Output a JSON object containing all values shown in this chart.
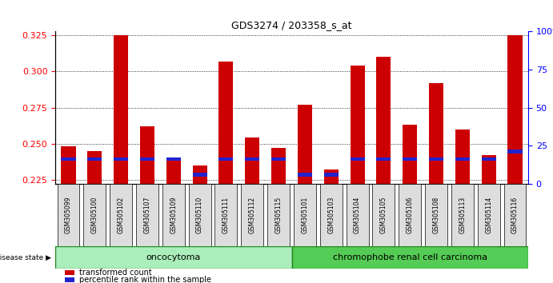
{
  "title": "GDS3274 / 203358_s_at",
  "samples": [
    "GSM305099",
    "GSM305100",
    "GSM305102",
    "GSM305107",
    "GSM305109",
    "GSM305110",
    "GSM305111",
    "GSM305112",
    "GSM305115",
    "GSM305101",
    "GSM305103",
    "GSM305104",
    "GSM305105",
    "GSM305106",
    "GSM305108",
    "GSM305113",
    "GSM305114",
    "GSM305116"
  ],
  "transformed_count": [
    0.248,
    0.245,
    0.325,
    0.262,
    0.24,
    0.235,
    0.307,
    0.254,
    0.247,
    0.277,
    0.232,
    0.304,
    0.31,
    0.263,
    0.292,
    0.26,
    0.242,
    0.325
  ],
  "percentile_rank": [
    15,
    15,
    15,
    15,
    15,
    5,
    15,
    15,
    15,
    5,
    5,
    15,
    15,
    15,
    15,
    15,
    15,
    20
  ],
  "y_min": 0.222,
  "y_max": 0.328,
  "y_ticks_left": [
    0.225,
    0.25,
    0.275,
    0.3,
    0.325
  ],
  "y_ticks_right": [
    0,
    25,
    50,
    75,
    100
  ],
  "bar_color": "#cc0000",
  "percentile_color": "#2222cc",
  "oncocytoma_color": "#aaeebb",
  "carcinoma_color": "#55cc55",
  "bg_color": "#ffffff",
  "tick_bg_color": "#dddddd",
  "oncocytoma_samples": 9,
  "carcinoma_samples": 9,
  "oncocytoma_label": "oncocytoma",
  "carcinoma_label": "chromophobe renal cell carcinoma",
  "disease_state_label": "disease state",
  "legend_transformed": "transformed count",
  "legend_percentile": "percentile rank within the sample",
  "bar_width": 0.55
}
